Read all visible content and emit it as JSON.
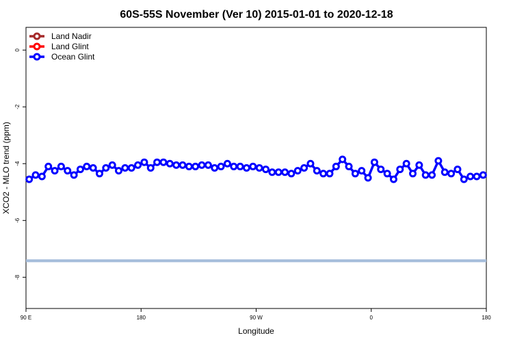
{
  "chart_data": {
    "type": "line",
    "title": "60S-55S November (Ver 10)   2015-01-01 to 2020-12-18",
    "xlabel": "Longitude",
    "ylabel": "XCO2 - MLO trend (ppm)",
    "xlim": [
      90,
      450
    ],
    "ylim": [
      -9.1,
      0.8
    ],
    "x_ticks": [
      {
        "value": 90,
        "label": "90 E"
      },
      {
        "value": 180,
        "label": "180"
      },
      {
        "value": 270,
        "label": "90 W"
      },
      {
        "value": 360,
        "label": "0"
      },
      {
        "value": 450,
        "label": "180"
      }
    ],
    "y_ticks": [
      {
        "value": 0,
        "label": "0"
      },
      {
        "value": -2,
        "label": "-2"
      },
      {
        "value": -4,
        "label": "-4"
      },
      {
        "value": -6,
        "label": "-6"
      },
      {
        "value": -8,
        "label": "-8"
      }
    ],
    "series": [
      {
        "name": "Land Nadir",
        "color": "#a52a2a",
        "x": [],
        "y": []
      },
      {
        "name": "Land Glint",
        "color": "#ff0000",
        "x": [],
        "y": []
      },
      {
        "name": "Ocean Glint",
        "color": "#0000ff",
        "x": [
          92.5,
          97.5,
          102.5,
          107.5,
          112.5,
          117.5,
          122.5,
          127.5,
          132.5,
          137.5,
          142.5,
          147.5,
          152.5,
          157.5,
          162.5,
          167.5,
          172.5,
          177.5,
          182.5,
          187.5,
          192.5,
          197.5,
          202.5,
          207.5,
          212.5,
          217.5,
          222.5,
          227.5,
          232.5,
          237.5,
          242.5,
          247.5,
          252.5,
          257.5,
          262.5,
          267.5,
          272.5,
          277.5,
          282.5,
          287.5,
          292.5,
          297.5,
          302.5,
          307.5,
          312.5,
          317.5,
          322.5,
          327.5,
          332.5,
          337.5,
          342.5,
          347.5,
          352.5,
          357.5,
          362.5,
          367.5,
          372.5,
          377.5,
          382.5,
          387.5,
          392.5,
          397.5,
          402.5,
          407.5,
          412.5,
          417.5,
          422.5,
          427.5,
          432.5,
          437.5,
          442.5,
          447.5
        ],
        "y": [
          -4.55,
          -4.4,
          -4.45,
          -4.1,
          -4.25,
          -4.1,
          -4.25,
          -4.4,
          -4.2,
          -4.1,
          -4.15,
          -4.35,
          -4.15,
          -4.05,
          -4.25,
          -4.15,
          -4.15,
          -4.05,
          -3.95,
          -4.15,
          -3.95,
          -3.95,
          -4.0,
          -4.05,
          -4.05,
          -4.1,
          -4.1,
          -4.05,
          -4.05,
          -4.15,
          -4.1,
          -4.0,
          -4.1,
          -4.1,
          -4.15,
          -4.1,
          -4.15,
          -4.2,
          -4.3,
          -4.3,
          -4.3,
          -4.35,
          -4.25,
          -4.15,
          -4.0,
          -4.25,
          -4.35,
          -4.35,
          -4.1,
          -3.85,
          -4.1,
          -4.35,
          -4.25,
          -4.5,
          -3.95,
          -4.2,
          -4.35,
          -4.55,
          -4.2,
          -4.0,
          -4.35,
          -4.05,
          -4.4,
          -4.4,
          -3.9,
          -4.3,
          -4.35,
          -4.2,
          -4.55,
          -4.45,
          -4.45,
          -4.4
        ]
      }
    ],
    "legend": {
      "position": "top-left",
      "entries": [
        "Land Nadir",
        "Land Glint",
        "Ocean Glint"
      ]
    },
    "band": {
      "y_from": -7.37,
      "y_to": -7.47,
      "color": "#a6bddb"
    },
    "grid": false,
    "extra_points": {
      "x": [
        432.5,
        437.5,
        442.5,
        447.5
      ],
      "y": [
        -4.2,
        -4.05,
        -4.15,
        -4.1
      ]
    }
  }
}
